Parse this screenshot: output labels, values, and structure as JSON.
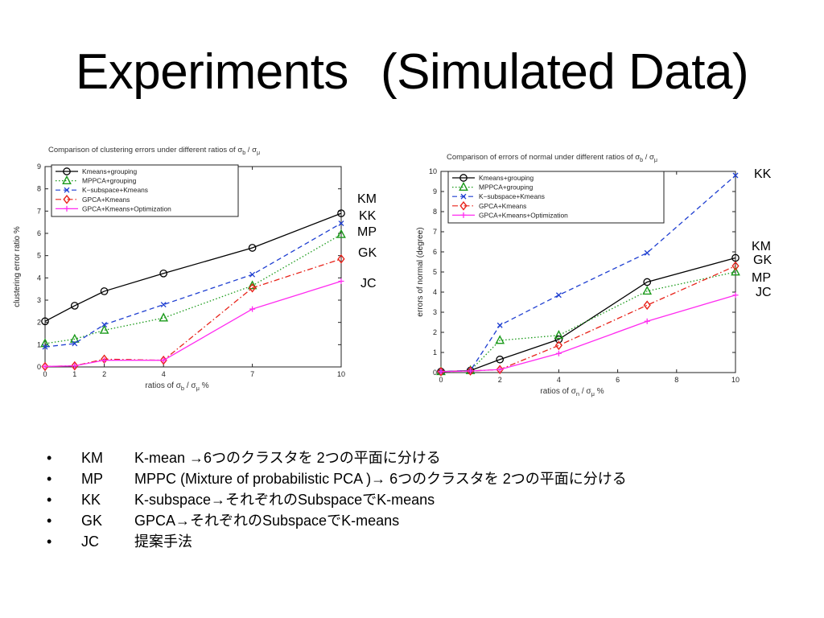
{
  "slide": {
    "title_main": "Experiments",
    "title_sub": "(Simulated Data)"
  },
  "charts": [
    {
      "key": "left",
      "title_prefix": "Comparison of clustering errors under different ratios of σ",
      "title_sub1": "b",
      "title_mid": " / σ",
      "title_sub2": "μ",
      "xlabel_prefix": "ratios of σ",
      "xlabel_sub1": "b",
      "xlabel_mid": " / σ",
      "xlabel_sub2": "μ",
      "xlabel_suffix": " %",
      "ylabel": "clustering error ratio %",
      "side_labels": [
        "KM",
        "KK",
        "MP",
        "GK",
        "JC"
      ]
    },
    {
      "key": "right",
      "title_prefix": "Comparison of errors of normal under different ratios of σ",
      "title_sub1": "b",
      "title_mid": " / σ",
      "title_sub2": "μ",
      "xlabel_prefix": "ratios of σ",
      "xlabel_sub1": "n",
      "xlabel_mid": " / σ",
      "xlabel_sub2": "μ",
      "xlabel_suffix": " %",
      "ylabel": "errors of normal (degree)",
      "side_labels": [
        "KK",
        "KM",
        "GK",
        "MP",
        "JC"
      ]
    }
  ],
  "chart_data": [
    {
      "type": "line",
      "title": "Comparison of clustering errors under different ratios of σb / σμ",
      "xlabel": "ratios of σb / σμ %",
      "ylabel": "clustering error ratio %",
      "xlim": [
        0,
        10
      ],
      "ylim": [
        0,
        9
      ],
      "xticks": [
        0,
        1,
        2,
        4,
        7,
        10
      ],
      "yticks": [
        0,
        1,
        2,
        3,
        4,
        5,
        6,
        7,
        8,
        9
      ],
      "grid": false,
      "legend_position": "top-left",
      "series": [
        {
          "name": "Kmeans+grouping",
          "color": "#000000",
          "marker": "circle",
          "dash": "solid",
          "x": [
            0,
            1,
            2,
            4,
            7,
            10
          ],
          "y": [
            2.05,
            2.75,
            3.4,
            4.2,
            5.35,
            6.9
          ]
        },
        {
          "name": "MPPCA+grouping",
          "color": "#1a9a1a",
          "marker": "triangle",
          "dash": "dotted",
          "x": [
            0,
            1,
            2,
            4,
            7,
            10
          ],
          "y": [
            1.05,
            1.25,
            1.65,
            2.2,
            3.65,
            5.95
          ]
        },
        {
          "name": "K−subspace+Kmeans",
          "color": "#1f3fd1",
          "marker": "x",
          "dash": "dashed",
          "x": [
            0,
            1,
            2,
            4,
            7,
            10
          ],
          "y": [
            0.9,
            1.05,
            1.9,
            2.8,
            4.15,
            6.45
          ]
        },
        {
          "name": "GPCA+Kmeans",
          "color": "#e8231a",
          "marker": "diamond",
          "dash": "dashdot",
          "x": [
            0,
            1,
            2,
            4,
            7,
            10
          ],
          "y": [
            0.02,
            0.05,
            0.35,
            0.3,
            3.55,
            4.85
          ]
        },
        {
          "name": "GPCA+Kmeans+Optimization",
          "color": "#ff2bf0",
          "marker": "plus",
          "dash": "solid",
          "x": [
            0,
            1,
            2,
            4,
            7,
            10
          ],
          "y": [
            0.02,
            0.05,
            0.3,
            0.3,
            2.6,
            3.85
          ]
        }
      ]
    },
    {
      "type": "line",
      "title": "Comparison of errors of normal under different ratios of σb / σμ",
      "xlabel": "ratios of σn / σμ %",
      "ylabel": "errors of normal (degree)",
      "xlim": [
        0,
        10
      ],
      "ylim": [
        0,
        10
      ],
      "xticks": [
        0,
        2,
        4,
        6,
        8,
        10
      ],
      "yticks": [
        0,
        1,
        2,
        3,
        4,
        5,
        6,
        7,
        8,
        9,
        10
      ],
      "grid": false,
      "legend_position": "top-left",
      "series": [
        {
          "name": "Kmeans+grouping",
          "color": "#000000",
          "marker": "circle",
          "dash": "solid",
          "x": [
            0,
            1,
            2,
            4,
            7,
            10
          ],
          "y": [
            0.05,
            0.1,
            0.65,
            1.65,
            4.5,
            5.7
          ]
        },
        {
          "name": "MPPCA+grouping",
          "color": "#1a9a1a",
          "marker": "triangle",
          "dash": "dotted",
          "x": [
            0,
            1,
            2,
            4,
            7,
            10
          ],
          "y": [
            0.05,
            0.1,
            1.6,
            1.85,
            4.05,
            5.0
          ]
        },
        {
          "name": "K−subspace+Kmeans",
          "color": "#1f3fd1",
          "marker": "x",
          "dash": "dashed",
          "x": [
            0,
            1,
            2,
            4,
            7,
            10
          ],
          "y": [
            0.05,
            0.1,
            2.35,
            3.85,
            5.95,
            9.8
          ]
        },
        {
          "name": "GPCA+Kmeans",
          "color": "#e8231a",
          "marker": "diamond",
          "dash": "dashdot",
          "x": [
            0,
            1,
            2,
            4,
            7,
            10
          ],
          "y": [
            0.05,
            0.08,
            0.15,
            1.35,
            3.35,
            5.3
          ]
        },
        {
          "name": "GPCA+Kmeans+Optimization",
          "color": "#ff2bf0",
          "marker": "plus",
          "dash": "solid",
          "x": [
            0,
            1,
            2,
            4,
            7,
            10
          ],
          "y": [
            0.05,
            0.08,
            0.15,
            0.95,
            2.55,
            3.85
          ]
        }
      ]
    }
  ],
  "bullets": [
    {
      "abbr": "KM",
      "text": "K-mean →6つのクラスタを 2つの平面に分ける"
    },
    {
      "abbr": "MP",
      "text": "MPPC (Mixture of probabilistic PCA )→ 6つのクラスタを 2つの平面に分ける"
    },
    {
      "abbr": "KK",
      "text": "K-subspace→それぞれのSubspaceでK-means"
    },
    {
      "abbr": "GK",
      "text": "GPCA→それぞれのSubspaceでK-means"
    },
    {
      "abbr": "JC",
      "text": "提案手法"
    }
  ]
}
